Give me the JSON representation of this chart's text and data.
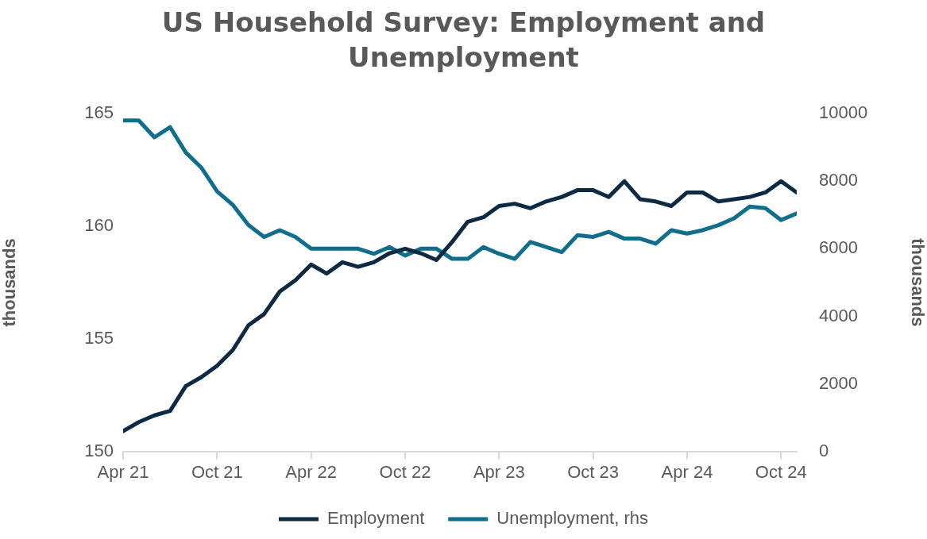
{
  "chart_data": {
    "type": "line",
    "title": "US Household Survey: Employment and Unemployment",
    "ylabel": "thousands",
    "y2label": "thousands",
    "x": [
      "2021-04",
      "2021-05",
      "2021-06",
      "2021-07",
      "2021-08",
      "2021-09",
      "2021-10",
      "2021-11",
      "2021-12",
      "2022-01",
      "2022-02",
      "2022-03",
      "2022-04",
      "2022-05",
      "2022-06",
      "2022-07",
      "2022-08",
      "2022-09",
      "2022-10",
      "2022-11",
      "2022-12",
      "2023-01",
      "2023-02",
      "2023-03",
      "2023-04",
      "2023-05",
      "2023-06",
      "2023-07",
      "2023-08",
      "2023-09",
      "2023-10",
      "2023-11",
      "2023-12",
      "2024-01",
      "2024-02",
      "2024-03",
      "2024-04",
      "2024-05",
      "2024-06",
      "2024-07",
      "2024-08",
      "2024-09",
      "2024-10",
      "2024-11"
    ],
    "series": [
      {
        "name": "Employment",
        "color": "#0d2a45",
        "values": [
          150.9,
          151.3,
          151.6,
          151.8,
          152.9,
          153.3,
          153.8,
          154.5,
          155.6,
          156.1,
          157.1,
          157.6,
          158.3,
          157.9,
          158.4,
          158.2,
          158.4,
          158.8,
          159.0,
          158.8,
          158.5,
          159.3,
          160.2,
          160.4,
          160.9,
          161.0,
          160.8,
          161.1,
          161.3,
          161.6,
          161.6,
          161.3,
          162.0,
          161.2,
          161.1,
          160.9,
          161.5,
          161.5,
          161.1,
          161.2,
          161.3,
          161.5,
          162.0,
          161.5
        ]
      },
      {
        "name": "Unemployment, rhs",
        "color": "#0e6e8c",
        "axis": "y2",
        "values": [
          9800,
          9800,
          9300,
          9600,
          8850,
          8400,
          7700,
          7300,
          6700,
          6350,
          6550,
          6350,
          6000,
          6000,
          6000,
          6000,
          5850,
          6050,
          5800,
          6000,
          6000,
          5700,
          5700,
          6050,
          5850,
          5700,
          6200,
          6050,
          5900,
          6400,
          6350,
          6500,
          6300,
          6300,
          6150,
          6550,
          6450,
          6550,
          6700,
          6900,
          7250,
          7200,
          6850,
          7050
        ]
      }
    ],
    "xlim": [
      "2021-04",
      "2024-11"
    ],
    "xticks": [
      {
        "value": "2021-04",
        "label": "Apr 21"
      },
      {
        "value": "2021-10",
        "label": "Oct 21"
      },
      {
        "value": "2022-04",
        "label": "Apr 22"
      },
      {
        "value": "2022-10",
        "label": "Oct 22"
      },
      {
        "value": "2023-04",
        "label": "Apr 23"
      },
      {
        "value": "2023-10",
        "label": "Oct 23"
      },
      {
        "value": "2024-04",
        "label": "Apr 24"
      },
      {
        "value": "2024-10",
        "label": "Oct 24"
      }
    ],
    "ylim": [
      150,
      165
    ],
    "yticks": [
      150,
      155,
      160,
      165
    ],
    "y2lim": [
      0,
      10000
    ],
    "y2ticks": [
      0,
      2000,
      4000,
      6000,
      8000,
      10000
    ],
    "grid": false,
    "legend": "bottom",
    "marker": "none",
    "line_style": "solid"
  }
}
